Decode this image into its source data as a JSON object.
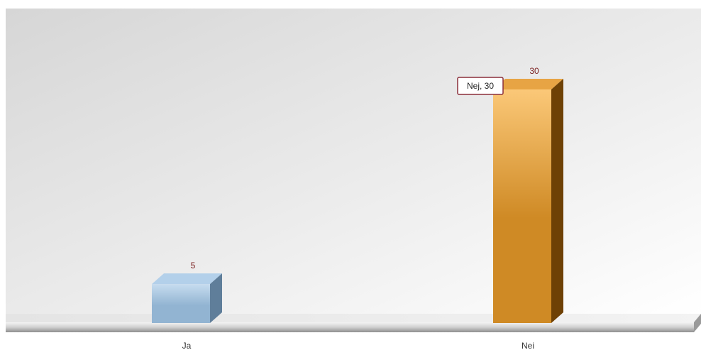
{
  "chart_data": {
    "type": "bar",
    "categories": [
      "Ja",
      "Nei"
    ],
    "values": [
      5,
      30
    ],
    "value_labels": [
      "5",
      "30"
    ],
    "tooltip": {
      "category": "Nei",
      "text": "Nej, 30"
    },
    "colors": {
      "Ja": {
        "light": "#c6dcef",
        "mid": "#92b4d2",
        "dark": "#5f7e9a",
        "top": "#b3d0ea"
      },
      "Nei": {
        "light": "#fbc878",
        "mid": "#cf8a25",
        "dark": "#6e4105",
        "top": "#e7a444"
      },
      "value_label": "#7a1f1f",
      "tooltip_border": "#8b2f3a",
      "category_label": "#333333"
    },
    "ylim": [
      0,
      30
    ],
    "grid": false,
    "legend": "none"
  }
}
